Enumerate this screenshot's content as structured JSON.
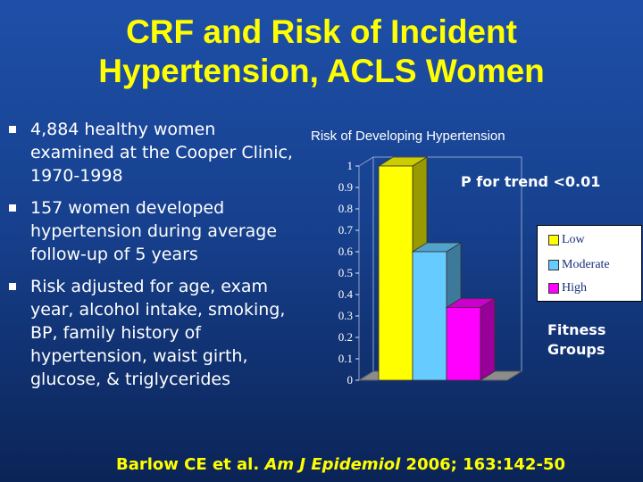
{
  "title_line1": "CRF and Risk of Incident",
  "title_line2": "Hypertension, ACLS Women",
  "bullets": [
    "4,884 healthy women examined at the Cooper Clinic, 1970-1998",
    "157 women developed hypertension during average follow-up of 5 years",
    "Risk adjusted for age, exam year, alcohol intake, smoking, BP, family history of hypertension, waist girth, glucose, & triglycerides"
  ],
  "annotations": {
    "p_trend": "P for trend <0.01",
    "groups_line1": "Fitness",
    "groups_line2": "Groups"
  },
  "citation": {
    "authors": "Barlow CE et al. ",
    "journal": "Am J Epidemiol",
    "details": " 2006; 163:142-50"
  },
  "colors": {
    "background": "#1a4aa0",
    "title": "#ffff00",
    "low": "#ffff00",
    "moderate": "#66ccff",
    "high": "#ff00ff"
  },
  "chart_data": {
    "type": "bar",
    "title": "Risk of Developing Hypertension",
    "categories": [
      "Low",
      "Moderate",
      "High"
    ],
    "values": [
      1.0,
      0.6,
      0.34
    ],
    "colors": [
      "#ffff00",
      "#66ccff",
      "#ff00ff"
    ],
    "ylim": [
      0,
      1
    ],
    "yticks": [
      "0",
      "0.1",
      "0.2",
      "0.3",
      "0.4",
      "0.5",
      "0.6",
      "0.7",
      "0.8",
      "0.9",
      "1"
    ],
    "legend": [
      "Low",
      "Moderate",
      "High"
    ],
    "legend_position": "right",
    "grid": false,
    "style": "3d"
  }
}
